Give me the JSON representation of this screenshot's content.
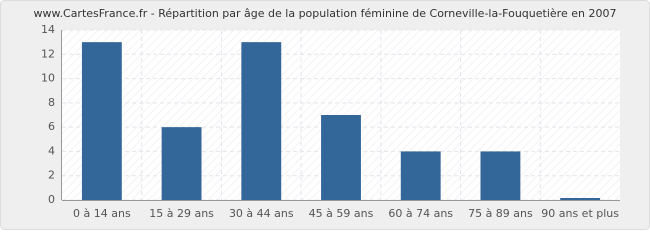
{
  "chart_data": {
    "type": "bar",
    "title": "www.CartesFrance.fr - Répartition par âge de la population féminine de Corneville-la-Fouquetière en 2007",
    "categories": [
      "0 à 14 ans",
      "15 à 29 ans",
      "30 à 44 ans",
      "45 à 59 ans",
      "60 à 74 ans",
      "75 à 89 ans",
      "90 ans et plus"
    ],
    "values": [
      13,
      6,
      13,
      7,
      4,
      4,
      0
    ],
    "color": "#336699",
    "ylim": [
      0,
      14
    ],
    "yticks": [
      0,
      2,
      4,
      6,
      8,
      10,
      12,
      14
    ],
    "grid": true
  }
}
